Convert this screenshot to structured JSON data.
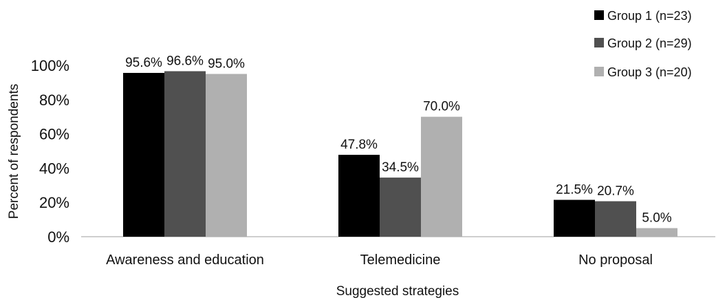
{
  "chart_data": {
    "type": "bar",
    "xlabel": "Suggested strategies",
    "ylabel": "Percent of respondents",
    "ylim": [
      0,
      100
    ],
    "yticks": [
      0,
      20,
      40,
      60,
      80,
      100
    ],
    "ytick_labels": [
      "0%",
      "20%",
      "40%",
      "60%",
      "80%",
      "100%"
    ],
    "categories": [
      "Awareness and education",
      "Telemedicine",
      "No proposal"
    ],
    "series": [
      {
        "name": "Group 1 (n=23)",
        "color": "#000000",
        "values": [
          95.6,
          47.8,
          21.5
        ],
        "labels": [
          "95.6%",
          "47.8%",
          "21.5%"
        ]
      },
      {
        "name": "Group 2 (n=29)",
        "color": "#505050",
        "values": [
          96.6,
          34.5,
          20.7
        ],
        "labels": [
          "96.6%",
          "34.5%",
          "20.7%"
        ]
      },
      {
        "name": "Group 3 (n=20)",
        "color": "#b0b0b0",
        "values": [
          95.0,
          70.0,
          5.0
        ],
        "labels": [
          "95.0%",
          "70.0%",
          "5.0%"
        ]
      }
    ],
    "legend_position": "top-right",
    "grid": false
  }
}
